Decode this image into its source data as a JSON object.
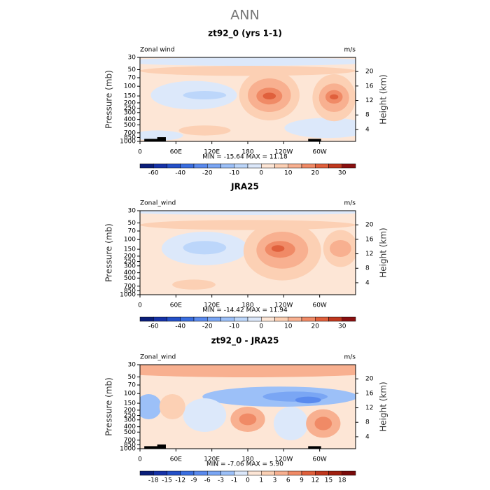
{
  "title": "ANN",
  "chart_data": [
    {
      "type": "contour",
      "title": "zt92_0 (yrs 1-1)",
      "field_label": "Zonal wind",
      "units": "m/s",
      "y_label": "Pressure (mb)",
      "y2_label": "Height (km)",
      "stats": "MIN = -15.64   MAX =  11.18",
      "log_y": true,
      "ylim": [
        1000,
        30
      ],
      "yticks": [
        30,
        50,
        70,
        100,
        150,
        200,
        250,
        300,
        400,
        500,
        700,
        850,
        1000
      ],
      "y2lim": [
        0.7,
        23.9
      ],
      "y2ticks": [
        4,
        8,
        12,
        16,
        20
      ],
      "xlim": [
        0,
        360
      ],
      "xticks": [
        0,
        {
          "value": 60,
          "label": "60E"
        },
        {
          "value": 120,
          "label": "120E"
        },
        180,
        {
          "value": 240,
          "label": "120W"
        },
        {
          "value": 300,
          "label": "60W"
        }
      ],
      "colorbar": {
        "levels": [
          -60,
          null,
          -40,
          null,
          -20,
          null,
          -10,
          null,
          0,
          null,
          10,
          null,
          20,
          null,
          30
        ],
        "colors": [
          "#0a1e7a",
          "#1632a8",
          "#2450c8",
          "#3a6ee0",
          "#5a8aee",
          "#7aa6f4",
          "#9cc0f8",
          "#bcd6fa",
          "#dce8fa",
          "#fde6d6",
          "#fcd0b4",
          "#f8b090",
          "#f08a66",
          "#e0603c",
          "#c0381e",
          "#8a1010"
        ]
      }
    },
    {
      "type": "contour",
      "title": "JRA25",
      "field_label": "Zonal_wind",
      "units": "m/s",
      "y_label": "Pressure (mb)",
      "y2_label": "Height (km)",
      "stats": "MIN = -14.42   MAX =  11.94",
      "log_y": true,
      "ylim": [
        1000,
        30
      ],
      "yticks": [
        30,
        50,
        70,
        100,
        150,
        200,
        250,
        300,
        400,
        500,
        700,
        850,
        1000
      ],
      "y2lim": [
        0.7,
        23.9
      ],
      "y2ticks": [
        4,
        8,
        12,
        16,
        20
      ],
      "xlim": [
        0,
        360
      ],
      "xticks": [
        0,
        {
          "value": 60,
          "label": "60E"
        },
        {
          "value": 120,
          "label": "120E"
        },
        180,
        {
          "value": 240,
          "label": "120W"
        },
        {
          "value": 300,
          "label": "60W"
        }
      ],
      "colorbar": {
        "levels": [
          -60,
          null,
          -40,
          null,
          -20,
          null,
          -10,
          null,
          0,
          null,
          10,
          null,
          20,
          null,
          30
        ],
        "colors": [
          "#0a1e7a",
          "#1632a8",
          "#2450c8",
          "#3a6ee0",
          "#5a8aee",
          "#7aa6f4",
          "#9cc0f8",
          "#bcd6fa",
          "#dce8fa",
          "#fde6d6",
          "#fcd0b4",
          "#f8b090",
          "#f08a66",
          "#e0603c",
          "#c0381e",
          "#8a1010"
        ]
      }
    },
    {
      "type": "contour",
      "title": "zt92_0 - JRA25",
      "field_label": "Zonal_wind",
      "units": "m/s",
      "y_label": "Pressure (mb)",
      "y2_label": "Height (km)",
      "stats": "MIN = -7.06   MAX =  5.90",
      "log_y": true,
      "ylim": [
        1000,
        30
      ],
      "yticks": [
        30,
        50,
        70,
        100,
        150,
        200,
        250,
        300,
        400,
        500,
        700,
        850,
        1000
      ],
      "y2lim": [
        0.7,
        23.9
      ],
      "y2ticks": [
        4,
        8,
        12,
        16,
        20
      ],
      "xlim": [
        0,
        360
      ],
      "xticks": [
        0,
        {
          "value": 60,
          "label": "60E"
        },
        {
          "value": 120,
          "label": "120E"
        },
        180,
        {
          "value": 240,
          "label": "120W"
        },
        {
          "value": 300,
          "label": "60W"
        }
      ],
      "colorbar": {
        "levels": [
          -18,
          -15,
          -12,
          -9,
          -6,
          -3,
          -1,
          0,
          1,
          3,
          6,
          9,
          12,
          15,
          18
        ],
        "colors": [
          "#0a1e7a",
          "#1632a8",
          "#2450c8",
          "#3a6ee0",
          "#5a8aee",
          "#7aa6f4",
          "#9cc0f8",
          "#dce8fa",
          "#fde6d6",
          "#fcd0b4",
          "#f8b090",
          "#f08a66",
          "#e0603c",
          "#c0381e",
          "#a02010",
          "#7a0a0a"
        ]
      }
    }
  ]
}
